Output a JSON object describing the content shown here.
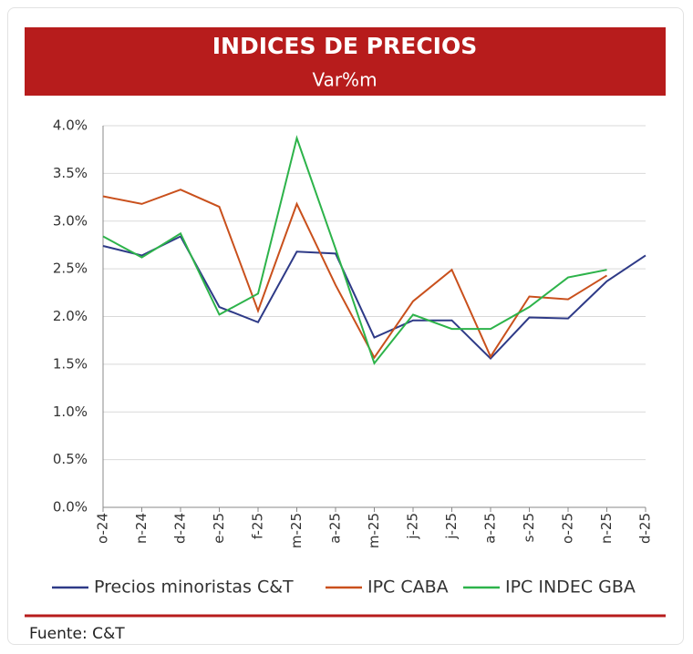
{
  "chart_data": {
    "type": "line",
    "title": "INDICES DE PRECIOS",
    "subtitle": "Var%m",
    "categories": [
      "o-24",
      "n-24",
      "d-24",
      "e-25",
      "f-25",
      "m-25",
      "a-25",
      "m-25",
      "j-25",
      "j-25",
      "a-25",
      "s-25",
      "o-25",
      "n-25",
      "d-25"
    ],
    "series": [
      {
        "name": "Precios minoristas C&T",
        "color": "#2e3a87",
        "values": [
          2.74,
          2.64,
          2.84,
          2.1,
          1.94,
          2.68,
          2.66,
          1.78,
          1.96,
          1.96,
          1.56,
          1.99,
          1.98,
          2.37,
          2.64
        ]
      },
      {
        "name": "IPC CABA",
        "color": "#c9501c",
        "values": [
          3.26,
          3.18,
          3.33,
          3.15,
          2.06,
          3.18,
          2.33,
          1.57,
          2.16,
          2.49,
          1.58,
          2.21,
          2.18,
          2.43,
          null
        ]
      },
      {
        "name": "IPC INDEC GBA",
        "color": "#2db34a",
        "values": [
          2.84,
          2.62,
          2.87,
          2.02,
          2.24,
          3.87,
          2.71,
          1.51,
          2.02,
          1.87,
          1.87,
          2.1,
          2.41,
          2.49,
          null
        ]
      }
    ],
    "ylim": [
      0,
      4
    ],
    "yticks": [
      {
        "value": 0,
        "label": "0.0%"
      },
      {
        "value": 0.5,
        "label": "0.5%"
      },
      {
        "value": 1,
        "label": "1.0%"
      },
      {
        "value": 1.5,
        "label": "1.5%"
      },
      {
        "value": 2,
        "label": "2.0%"
      },
      {
        "value": 2.5,
        "label": "2.5%"
      },
      {
        "value": 3,
        "label": "3.0%"
      },
      {
        "value": 3.5,
        "label": "3.5%"
      },
      {
        "value": 4,
        "label": "4.0%"
      }
    ],
    "grid": true,
    "source": "Fuente: C&T"
  }
}
